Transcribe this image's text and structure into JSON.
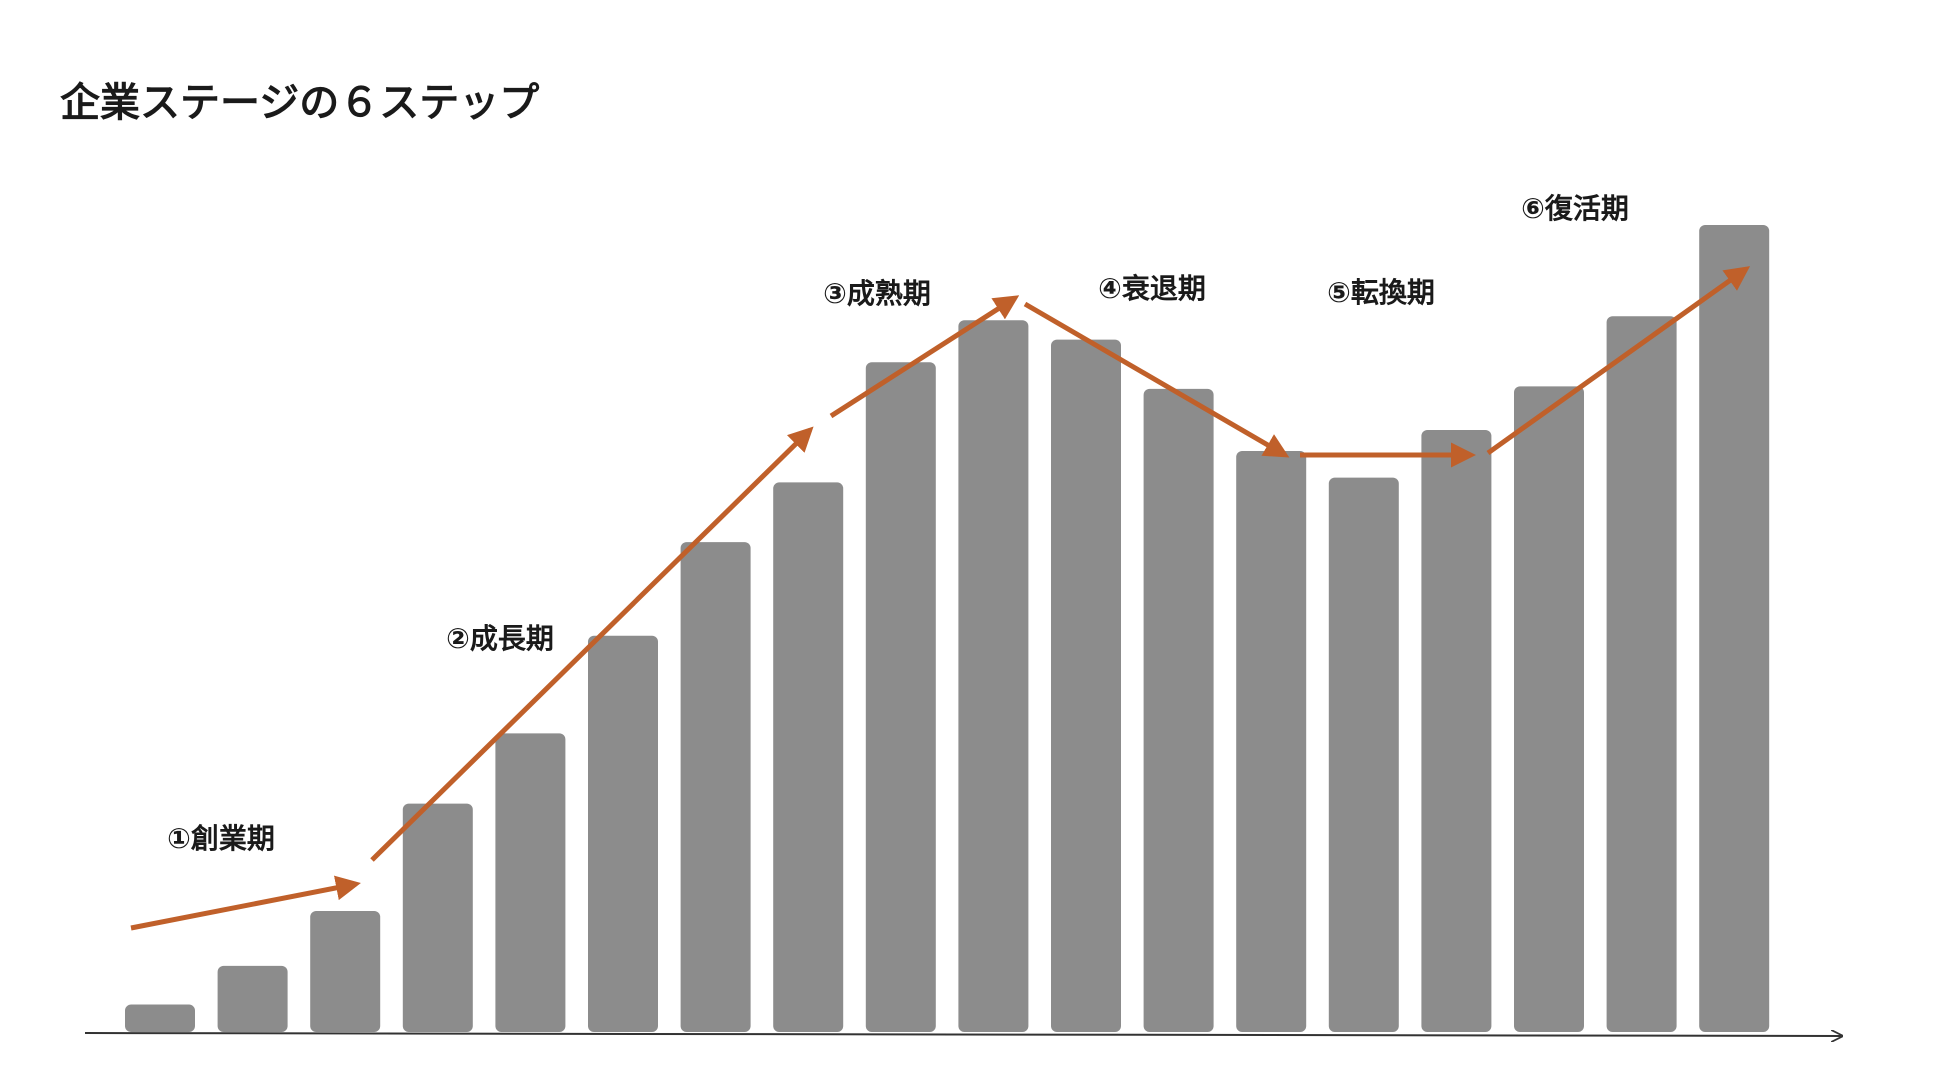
{
  "chart_data": {
    "type": "bar",
    "title": "企業ステージの６ステップ",
    "values": [
      3.4,
      8.2,
      15,
      28.3,
      37,
      49.1,
      60.7,
      68.1,
      83,
      88.2,
      85.8,
      79.7,
      72,
      68.7,
      74.6,
      80,
      88.7,
      100
    ],
    "color": "#8c8c8c",
    "ylim": [
      0,
      100
    ],
    "annotations": [
      "①創業期",
      "②成長期",
      "③成熟期",
      "④衰退期",
      "⑤転換期",
      "⑥復活期"
    ],
    "arrow_color": "#c0602a"
  }
}
